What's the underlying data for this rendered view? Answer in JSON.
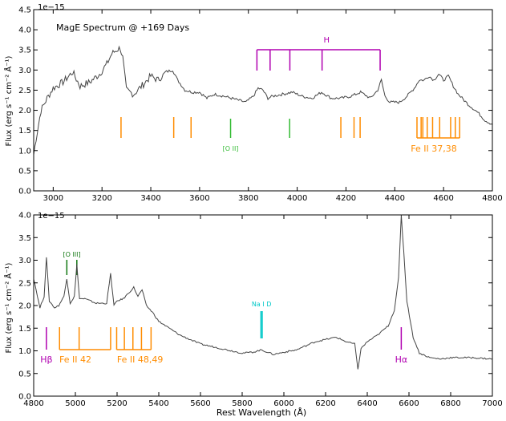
{
  "chart_data": [
    {
      "type": "line",
      "title": "MagE Spectrum @ +169 Days",
      "xlabel": "",
      "ylabel": "Flux (erg s⁻¹ cm⁻² Å⁻¹)",
      "y_multiplier": "1e−15",
      "xlim": [
        2920,
        4800
      ],
      "ylim": [
        0.0,
        4.5
      ],
      "x_ticks": [
        3000,
        3200,
        3400,
        3600,
        3800,
        4000,
        4200,
        4400,
        4600,
        4800
      ],
      "y_ticks": [
        0.0,
        0.5,
        1.0,
        1.5,
        2.0,
        2.5,
        3.0,
        3.5,
        4.0,
        4.5
      ],
      "series": [
        {
          "name": "spectrum",
          "x": [
            2920,
            2930,
            2950,
            2975,
            3000,
            3040,
            3080,
            3110,
            3150,
            3190,
            3220,
            3240,
            3260,
            3275,
            3285,
            3300,
            3330,
            3370,
            3400,
            3430,
            3460,
            3490,
            3510,
            3540,
            3570,
            3600,
            3630,
            3660,
            3700,
            3730,
            3760,
            3790,
            3820,
            3840,
            3860,
            3880,
            3900,
            3940,
            3980,
            4020,
            4060,
            4100,
            4140,
            4180,
            4220,
            4260,
            4300,
            4330,
            4345,
            4360,
            4380,
            4420,
            4450,
            4480,
            4500,
            4520,
            4540,
            4560,
            4580,
            4600,
            4620,
            4640,
            4660,
            4700,
            4740,
            4770,
            4800
          ],
          "y": [
            0.9,
            1.3,
            2.0,
            2.3,
            2.55,
            2.7,
            2.95,
            2.6,
            2.7,
            2.9,
            3.15,
            3.4,
            3.5,
            3.55,
            3.3,
            2.5,
            2.4,
            2.65,
            2.85,
            2.75,
            2.95,
            3.0,
            2.75,
            2.5,
            2.45,
            2.45,
            2.3,
            2.4,
            2.35,
            2.3,
            2.25,
            2.2,
            2.35,
            2.55,
            2.5,
            2.3,
            2.35,
            2.4,
            2.45,
            2.35,
            2.3,
            2.45,
            2.3,
            2.3,
            2.35,
            2.45,
            2.3,
            2.5,
            2.75,
            2.35,
            2.2,
            2.2,
            2.35,
            2.55,
            2.75,
            2.75,
            2.85,
            2.75,
            2.9,
            2.75,
            2.85,
            2.6,
            2.4,
            2.15,
            1.95,
            1.75,
            1.65
          ]
        }
      ],
      "annotations": [
        {
          "label": "H",
          "color": "#b000b0",
          "bracket_y": 3.5,
          "lines_x": [
            3835,
            3889,
            3970,
            4102,
            4340
          ]
        },
        {
          "label": "[O II]",
          "color": "#33bb33",
          "lines_x": [
            3727,
            3969
          ]
        },
        {
          "label": "",
          "color": "#ff8c00",
          "lines_x": [
            3278,
            3494,
            3565,
            4179,
            4233,
            4258
          ]
        },
        {
          "label": "Fe II 37,38",
          "color": "#ff8c00",
          "lines_x": [
            4491,
            4508,
            4515,
            4533,
            4555,
            4584,
            4629,
            4648,
            4666
          ]
        }
      ]
    },
    {
      "type": "line",
      "title": "",
      "xlabel": "Rest Wavelength (Å)",
      "ylabel": "Flux (erg s⁻¹ cm⁻² Å⁻¹)",
      "y_multiplier": "1e−15",
      "xlim": [
        4800,
        7000
      ],
      "ylim": [
        0.0,
        4.0
      ],
      "x_ticks": [
        4800,
        5000,
        5200,
        5400,
        5600,
        5800,
        6000,
        6200,
        6400,
        6600,
        6800,
        7000
      ],
      "y_ticks": [
        0.0,
        0.5,
        1.0,
        1.5,
        2.0,
        2.5,
        3.0,
        3.5,
        4.0
      ],
      "series": [
        {
          "name": "spectrum",
          "x": [
            4800,
            4830,
            4850,
            4861,
            4875,
            4900,
            4920,
            4945,
            4959,
            4975,
            4995,
            5007,
            5020,
            5045,
            5100,
            5150,
            5169,
            5185,
            5200,
            5230,
            5260,
            5280,
            5300,
            5320,
            5340,
            5370,
            5400,
            5450,
            5500,
            5550,
            5600,
            5700,
            5800,
            5850,
            5893,
            5950,
            6000,
            6060,
            6100,
            6150,
            6200,
            6250,
            6300,
            6340,
            6355,
            6370,
            6400,
            6450,
            6500,
            6530,
            6550,
            6563,
            6575,
            6590,
            6620,
            6650,
            6700,
            6750,
            6800,
            6900,
            7000
          ],
          "y": [
            2.6,
            1.95,
            2.2,
            3.05,
            2.1,
            1.95,
            2.0,
            2.2,
            2.6,
            2.05,
            2.2,
            2.9,
            2.15,
            2.15,
            2.05,
            2.05,
            2.7,
            2.0,
            2.1,
            2.15,
            2.3,
            2.4,
            2.2,
            2.35,
            2.0,
            1.85,
            1.65,
            1.5,
            1.35,
            1.25,
            1.15,
            1.05,
            0.95,
            0.97,
            1.02,
            0.92,
            0.97,
            1.02,
            1.1,
            1.2,
            1.25,
            1.3,
            1.2,
            1.15,
            0.6,
            1.05,
            1.2,
            1.35,
            1.55,
            1.9,
            2.6,
            3.99,
            3.2,
            2.1,
            1.3,
            0.95,
            0.85,
            0.82,
            0.85,
            0.85,
            0.82
          ]
        }
      ],
      "annotations": [
        {
          "label": "[O III]",
          "color": "#117711",
          "lines_x": [
            4959,
            5007
          ]
        },
        {
          "label": "Na I D",
          "color": "#00c8c8",
          "lines_x": [
            5890,
            5896
          ]
        },
        {
          "label": "Hβ",
          "color": "#b000b0",
          "lines_x": [
            4861
          ]
        },
        {
          "label": "Fe II 42",
          "color": "#ff8c00",
          "lines_x": [
            4924,
            5018,
            5169
          ]
        },
        {
          "label": "Fe II 48,49",
          "color": "#ff8c00",
          "lines_x": [
            5198,
            5235,
            5276,
            5317,
            5363
          ]
        },
        {
          "label": "Hα",
          "color": "#b000b0",
          "lines_x": [
            6563
          ]
        }
      ]
    }
  ]
}
